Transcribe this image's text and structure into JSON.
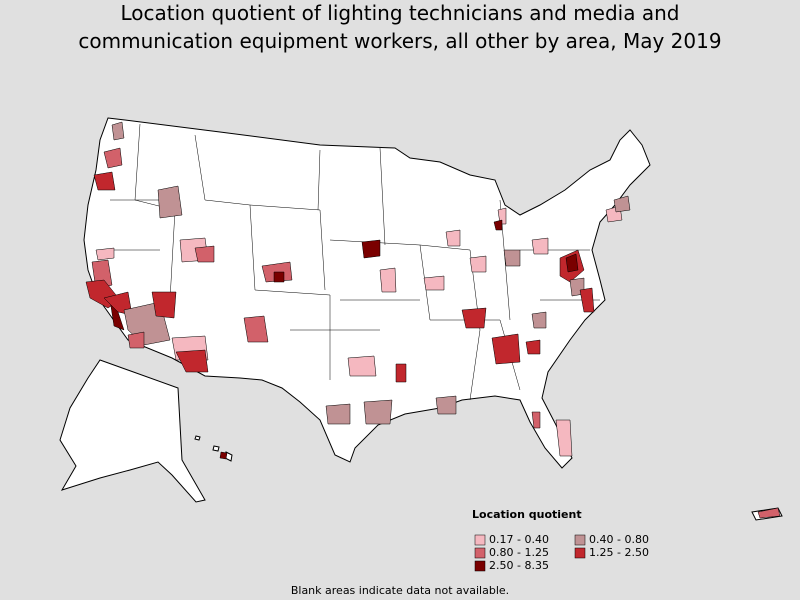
{
  "title_lines": [
    "Location quotient of lighting technicians and media and",
    "communication equipment workers, all other by area, May 2019"
  ],
  "legend": {
    "title": "Location quotient",
    "items": [
      {
        "label": "0.17 - 0.40",
        "color": "#f5b8c0"
      },
      {
        "label": "0.40 - 0.80",
        "color": "#c09294"
      },
      {
        "label": "0.80 - 1.25",
        "color": "#d2616a"
      },
      {
        "label": "1.25 - 2.50",
        "color": "#c1272d"
      },
      {
        "label": "2.50 - 8.35",
        "color": "#7a0000"
      }
    ]
  },
  "footnote": "Blank areas indicate data not available."
}
